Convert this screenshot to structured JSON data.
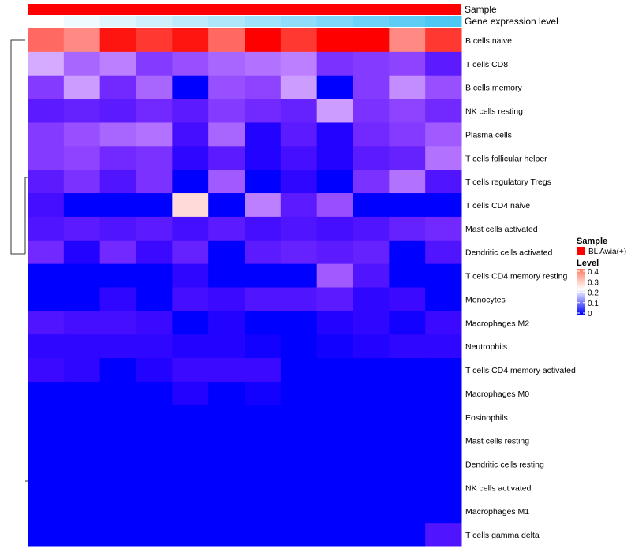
{
  "chart_data": {
    "type": "heatmap",
    "title": "",
    "annotation_rows": [
      {
        "label": "Sample",
        "type": "categorical",
        "color": "#FF0000"
      },
      {
        "label": "Gene expression level",
        "type": "continuous",
        "low_color": "#FFFFFF",
        "high_color": "#4DC8F5"
      }
    ],
    "columns": 12,
    "rows": [
      "B cells naive",
      "T cells CD8",
      "B cells memory",
      "NK cells resting",
      "Plasma cells",
      "T cells follicular helper",
      "T cells regulatory  Tregs",
      "T cells CD4 naive",
      "Mast cells activated",
      "Dendritic cells activated",
      "T cells CD4 memory resting",
      "Monocytes",
      "Macrophages M2",
      "Neutrophils",
      "T cells CD4 memory activated",
      "Macrophages M0",
      "Eosinophils",
      "Mast cells resting",
      "Dendritic cells resting",
      "NK cells activated",
      "Macrophages M1",
      "T cells gamma delta"
    ],
    "values": [
      [
        0.38,
        0.35,
        0.47,
        0.43,
        0.47,
        0.38,
        0.5,
        0.43,
        0.5,
        0.5,
        0.35,
        0.43
      ],
      [
        0.2,
        0.15,
        0.17,
        0.11,
        0.13,
        0.15,
        0.16,
        0.17,
        0.1,
        0.11,
        0.12,
        0.07
      ],
      [
        0.11,
        0.19,
        0.09,
        0.15,
        0.0,
        0.13,
        0.12,
        0.19,
        0.0,
        0.11,
        0.18,
        0.13
      ],
      [
        0.07,
        0.08,
        0.07,
        0.09,
        0.07,
        0.11,
        0.09,
        0.08,
        0.19,
        0.1,
        0.12,
        0.09
      ],
      [
        0.11,
        0.13,
        0.15,
        0.16,
        0.05,
        0.15,
        0.02,
        0.07,
        0.02,
        0.09,
        0.11,
        0.14
      ],
      [
        0.11,
        0.12,
        0.09,
        0.1,
        0.03,
        0.07,
        0.02,
        0.05,
        0.02,
        0.07,
        0.08,
        0.16
      ],
      [
        0.07,
        0.1,
        0.06,
        0.1,
        0.0,
        0.14,
        0.0,
        0.03,
        0.0,
        0.1,
        0.16,
        0.06
      ],
      [
        0.05,
        0.0,
        0.0,
        0.0,
        0.28,
        0.0,
        0.17,
        0.07,
        0.13,
        0.0,
        0.0,
        0.0
      ],
      [
        0.06,
        0.07,
        0.06,
        0.07,
        0.05,
        0.07,
        0.05,
        0.06,
        0.05,
        0.06,
        0.08,
        0.09
      ],
      [
        0.09,
        0.02,
        0.09,
        0.04,
        0.08,
        0.0,
        0.07,
        0.08,
        0.07,
        0.08,
        0.0,
        0.06
      ],
      [
        0.0,
        0.0,
        0.0,
        0.0,
        0.03,
        0.0,
        0.0,
        0.0,
        0.14,
        0.06,
        0.0,
        0.0
      ],
      [
        0.0,
        0.0,
        0.03,
        0.0,
        0.05,
        0.04,
        0.06,
        0.06,
        0.07,
        0.03,
        0.04,
        0.0
      ],
      [
        0.06,
        0.05,
        0.05,
        0.04,
        0.0,
        0.02,
        0.0,
        0.0,
        0.02,
        0.03,
        0.01,
        0.04
      ],
      [
        0.03,
        0.03,
        0.03,
        0.03,
        0.02,
        0.02,
        0.01,
        0.0,
        0.01,
        0.02,
        0.03,
        0.03
      ],
      [
        0.04,
        0.03,
        0.0,
        0.02,
        0.04,
        0.04,
        0.04,
        0.0,
        0.0,
        0.0,
        0.0,
        0.0
      ],
      [
        0.0,
        0.0,
        0.0,
        0.0,
        0.02,
        0.0,
        0.01,
        0.0,
        0.0,
        0.0,
        0.0,
        0.0
      ],
      [
        0,
        0,
        0,
        0,
        0,
        0,
        0,
        0,
        0,
        0,
        0,
        0
      ],
      [
        0,
        0,
        0,
        0,
        0,
        0,
        0,
        0,
        0,
        0,
        0,
        0
      ],
      [
        0,
        0,
        0,
        0,
        0,
        0,
        0,
        0,
        0,
        0,
        0,
        0
      ],
      [
        0,
        0,
        0,
        0,
        0,
        0,
        0,
        0,
        0,
        0,
        0,
        0
      ],
      [
        0,
        0,
        0,
        0,
        0,
        0,
        0,
        0,
        0,
        0,
        0,
        0
      ],
      [
        0,
        0,
        0,
        0,
        0,
        0,
        0,
        0,
        0,
        0,
        0,
        0.06
      ]
    ],
    "color_scale": {
      "low": "#0000FF",
      "mid": "#FFFFFF",
      "high": "#FF0000",
      "range": [
        0,
        0.5
      ]
    },
    "legend": {
      "position": "right",
      "sample_title": "Sample",
      "sample_entry": "BL Awia(+)",
      "sample_color": "#FF0000",
      "level_title": "Level",
      "level_ticks": [
        "0.4",
        "0.3",
        "0.2",
        "0.1",
        "0"
      ]
    }
  }
}
